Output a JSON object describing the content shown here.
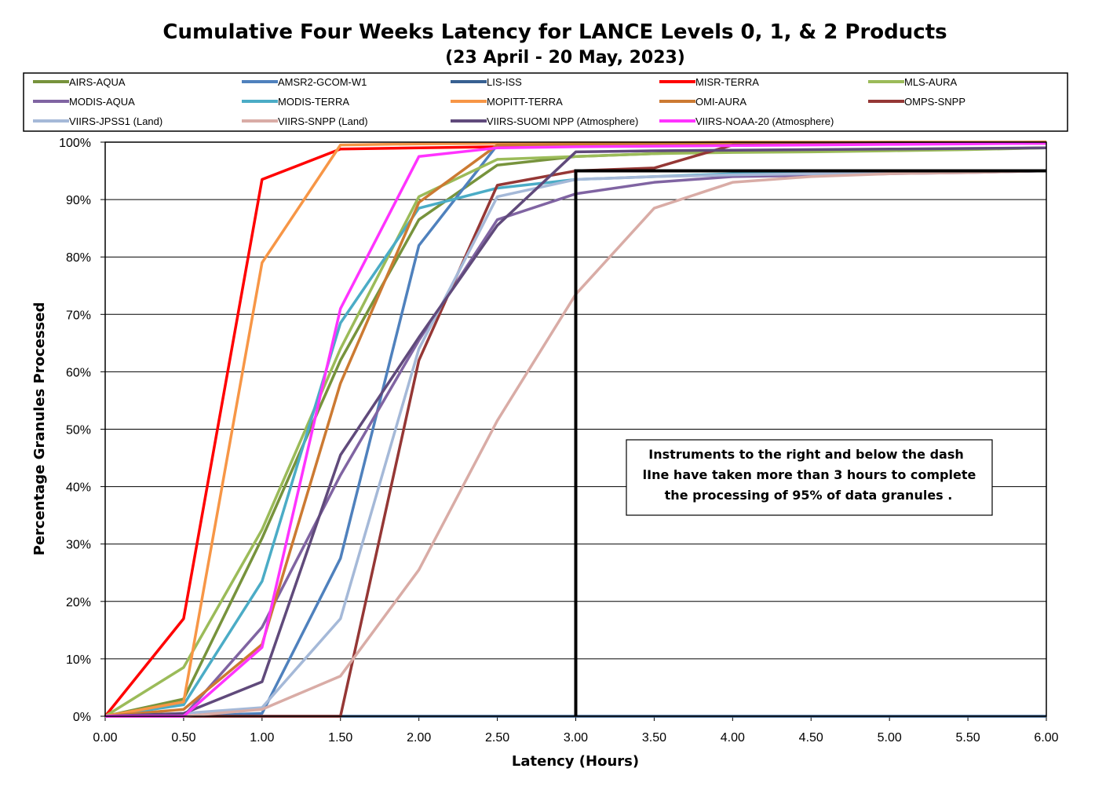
{
  "chart_data": {
    "type": "line",
    "title": "Cumulative Four Weeks Latency for LANCE Levels 0, 1, & 2 Products",
    "subtitle": "(23 April    -  20 May, 2023)",
    "xlabel": "Latency (Hours)",
    "ylabel": "Percentage Granules Processed",
    "x": [
      0,
      0.5,
      1.0,
      1.5,
      2.0,
      2.5,
      3.0,
      3.5,
      4.0,
      4.5,
      5.0,
      5.5,
      6.0
    ],
    "x_tick_labels": [
      "0.00",
      "0.50",
      "1.00",
      "1.50",
      "2.00",
      "2.50",
      "3.00",
      "3.50",
      "4.00",
      "4.50",
      "5.00",
      "5.50",
      "6.00"
    ],
    "y_tick_labels": [
      "0%",
      "10%",
      "20%",
      "30%",
      "40%",
      "50%",
      "60%",
      "70%",
      "80%",
      "90%",
      "100%"
    ],
    "xlim": [
      0,
      6
    ],
    "ylim": [
      0,
      100
    ],
    "grid": "horizontal",
    "legend_position": "top",
    "series": [
      {
        "name": "AIRS-AQUA",
        "color": "#77933C",
        "values": [
          0,
          3,
          31,
          62,
          86.5,
          96,
          97.5,
          98,
          98.5,
          98.5,
          98.7,
          98.8,
          99
        ]
      },
      {
        "name": "AMSR2-GCOM-W1",
        "color": "#4F81BD",
        "values": [
          0,
          0,
          0.5,
          27.5,
          82,
          99.5,
          99.7,
          99.8,
          99.9,
          99.9,
          100,
          100,
          100
        ]
      },
      {
        "name": "LIS-ISS",
        "color": "#376092",
        "values": [
          0,
          0,
          0,
          0,
          0,
          0,
          0,
          0,
          0,
          0,
          0,
          0,
          0
        ]
      },
      {
        "name": "MISR-TERRA",
        "color": "#FF0000",
        "values": [
          0,
          17,
          93.5,
          98.8,
          99,
          99.2,
          99.4,
          99.5,
          99.6,
          99.7,
          99.8,
          99.9,
          100
        ]
      },
      {
        "name": "MLS-AURA",
        "color": "#9BBB59",
        "values": [
          0,
          8.5,
          32.5,
          64,
          90.5,
          97,
          97.5,
          98,
          98.2,
          98.3,
          98.5,
          98.7,
          99
        ]
      },
      {
        "name": "MODIS-AQUA",
        "color": "#8064A2",
        "values": [
          0,
          0,
          15.5,
          42,
          65.5,
          86.5,
          91,
          93,
          94,
          94.2,
          94.5,
          94.7,
          95
        ]
      },
      {
        "name": "MODIS-TERRA",
        "color": "#4BACC6",
        "values": [
          0,
          2,
          23.5,
          68.5,
          88.5,
          92,
          93.5,
          94,
          94.5,
          94.5,
          94.6,
          94.8,
          95
        ]
      },
      {
        "name": "MOPITT-TERRA",
        "color": "#F79646",
        "values": [
          0,
          2.5,
          79,
          99.5,
          99.7,
          99.8,
          99.9,
          99.9,
          100,
          100,
          100,
          100,
          100
        ]
      },
      {
        "name": "OMI-AURA",
        "color": "#C0504D",
        "values": [
          0,
          1.2,
          12.5,
          58,
          89.5,
          99.5,
          99.6,
          99.7,
          99.8,
          99.8,
          99.9,
          99.9,
          100
        ],
        "color_override": "#CC7A32"
      },
      {
        "name": "OMPS-SNPP",
        "color": "#953735",
        "values": [
          0,
          0,
          0,
          0,
          62,
          92.5,
          95,
          95.5,
          99.5,
          99.6,
          99.7,
          99.8,
          99.8
        ]
      },
      {
        "name": "VIIRS-JPSS1 (Land)",
        "color": "#A5B9D8",
        "values": [
          0,
          0.5,
          1.5,
          17,
          64,
          90.5,
          93.5,
          94,
          94.3,
          94.5,
          94.6,
          94.8,
          95
        ]
      },
      {
        "name": "VIIRS-SNPP (Land)",
        "color": "#D9ACA6",
        "values": [
          0,
          0,
          1.2,
          7,
          25.5,
          51.5,
          73.5,
          88.5,
          93,
          94,
          94.5,
          94.7,
          95
        ]
      },
      {
        "name": "VIIRS-SUOMI NPP (Atmosphere)",
        "color": "#604A7B",
        "values": [
          0,
          0.5,
          6,
          45.5,
          66,
          85.5,
          98.3,
          98.5,
          98.6,
          98.7,
          98.8,
          98.9,
          99
        ]
      },
      {
        "name": "VIIRS-NOAA-20 (Atmosphere)",
        "color": "#FF33FF",
        "values": [
          0,
          0,
          12,
          71,
          97.5,
          99,
          99.2,
          99.3,
          99.4,
          99.5,
          99.6,
          99.7,
          99.8
        ]
      }
    ],
    "threshold_line": {
      "x": [
        3.0,
        3.0,
        6.0
      ],
      "y": [
        0,
        95,
        95
      ],
      "color": "#000000"
    },
    "annotation": {
      "lines": [
        "Instruments to the right and below the dash",
        "lIne have taken more than 3 hours to complete",
        "the processing of 95% of data granules ."
      ]
    }
  }
}
